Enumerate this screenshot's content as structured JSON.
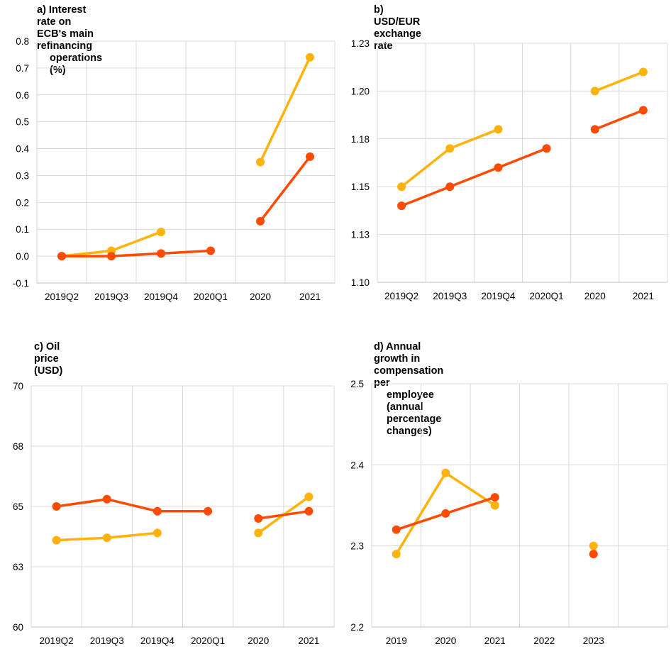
{
  "colors": {
    "series_a": "#FFB20A",
    "series_b": "#FF4B00",
    "grid": "#D9D9D9",
    "axis": "#BFBFBF"
  },
  "chart_data": [
    {
      "type": "line",
      "title_line1": "a) Interest rate on ECB's main refinancing",
      "title_line2": "operations (%)",
      "categories": [
        "2019Q2",
        "2019Q3",
        "2019Q4",
        "2020Q1",
        "2020",
        "2021"
      ],
      "ylim": [
        -0.1,
        0.8
      ],
      "yticks": [
        -0.1,
        0.0,
        0.1,
        0.2,
        0.3,
        0.4,
        0.5,
        0.6,
        0.7,
        0.8
      ],
      "ytick_labels": [
        "-0.1",
        "0.0",
        "0.1",
        "0.2",
        "0.3",
        "0.4",
        "0.5",
        "0.6",
        "0.7",
        "0.8"
      ],
      "grid": true,
      "series": [
        {
          "color": "#FFB20A",
          "segments": [
            [
              [
                0,
                0.0
              ],
              [
                1,
                0.02
              ],
              [
                2,
                0.09
              ]
            ],
            [
              [
                4,
                0.35
              ],
              [
                5,
                0.74
              ]
            ]
          ]
        },
        {
          "color": "#FF4B00",
          "segments": [
            [
              [
                0,
                0.0
              ],
              [
                1,
                0.0
              ],
              [
                2,
                0.01
              ],
              [
                3,
                0.02
              ]
            ],
            [
              [
                4,
                0.13
              ],
              [
                5,
                0.37
              ]
            ]
          ]
        }
      ]
    },
    {
      "type": "line",
      "title_line1": "b) USD/EUR exchange rate",
      "title_line2": "",
      "categories": [
        "2019Q2",
        "2019Q3",
        "2019Q4",
        "2020Q1",
        "2020",
        "2021"
      ],
      "ylim": [
        1.1,
        1.225
      ],
      "yticks": [
        1.1,
        1.125,
        1.15,
        1.175,
        1.2,
        1.225
      ],
      "ytick_labels": [
        "1.10",
        "1.13",
        "1.15",
        "1.18",
        "1.20",
        "1.23"
      ],
      "grid": true,
      "series": [
        {
          "color": "#FFB20A",
          "segments": [
            [
              [
                0,
                1.15
              ],
              [
                1,
                1.17
              ],
              [
                2,
                1.18
              ]
            ],
            [
              [
                4,
                1.2
              ],
              [
                5,
                1.21
              ]
            ]
          ]
        },
        {
          "color": "#FF4B00",
          "segments": [
            [
              [
                0,
                1.14
              ],
              [
                1,
                1.15
              ],
              [
                2,
                1.16
              ],
              [
                3,
                1.17
              ]
            ],
            [
              [
                4,
                1.18
              ],
              [
                5,
                1.19
              ]
            ]
          ]
        }
      ]
    },
    {
      "type": "line",
      "title_line1": "c) Oil price (USD)",
      "title_line2": "",
      "categories": [
        "2019Q2",
        "2019Q3",
        "2019Q4",
        "2020Q1",
        "2020",
        "2021"
      ],
      "ylim": [
        60,
        70
      ],
      "yticks": [
        60,
        62.5,
        65,
        67.5,
        70
      ],
      "ytick_labels": [
        "60",
        "63",
        "65",
        "68",
        "70"
      ],
      "grid": true,
      "series": [
        {
          "color": "#FFB20A",
          "segments": [
            [
              [
                0,
                63.6
              ],
              [
                1,
                63.7
              ],
              [
                2,
                63.9
              ]
            ],
            [
              [
                4,
                63.9
              ],
              [
                5,
                65.4
              ]
            ]
          ]
        },
        {
          "color": "#FF4B00",
          "segments": [
            [
              [
                0,
                65.0
              ],
              [
                1,
                65.3
              ],
              [
                2,
                64.8
              ],
              [
                3,
                64.8
              ]
            ],
            [
              [
                4,
                64.5
              ],
              [
                5,
                64.8
              ]
            ]
          ]
        }
      ]
    },
    {
      "type": "line",
      "title_line1": "d) Annual growth in compensation per",
      "title_line2": "employee (annual percentage changes)",
      "categories": [
        "2019",
        "2020",
        "2021",
        "2022",
        "2023",
        ""
      ],
      "ylim": [
        2.2,
        2.5
      ],
      "yticks": [
        2.2,
        2.3,
        2.4,
        2.5
      ],
      "ytick_labels": [
        "2.2",
        "2.3",
        "2.4",
        "2.5"
      ],
      "grid": true,
      "series": [
        {
          "color": "#FFB20A",
          "segments": [
            [
              [
                0,
                2.29
              ],
              [
                1,
                2.39
              ],
              [
                2,
                2.35
              ]
            ],
            [
              [
                4,
                2.3
              ]
            ]
          ]
        },
        {
          "color": "#FF4B00",
          "segments": [
            [
              [
                0,
                2.32
              ],
              [
                1,
                2.34
              ],
              [
                2,
                2.36
              ]
            ],
            [
              [
                4,
                2.29
              ]
            ]
          ]
        }
      ]
    }
  ]
}
